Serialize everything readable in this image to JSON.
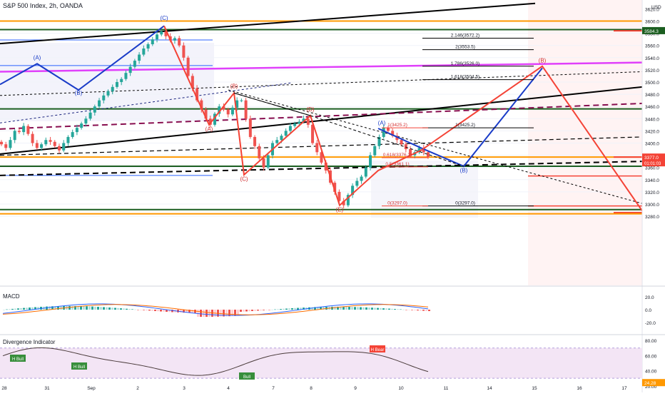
{
  "header": {
    "title": "S&P 500 Index, 2h, OANDA"
  },
  "chart_data": [
    {
      "type": "candlestick",
      "title": "S&P 500 Index, 2h, OANDA",
      "currency_label": "USD",
      "ylim": [
        3278,
        3620
      ],
      "y_ticks": [
        "3620.0",
        "3600.0",
        "3580.0",
        "3560.0",
        "3540.0",
        "3520.0",
        "3500.0",
        "3480.0",
        "3460.0",
        "3440.0",
        "3420.0",
        "3400.0",
        "3380.0",
        "3360.0",
        "3340.0",
        "3320.0",
        "3300.0",
        "3280.0"
      ],
      "x_tick_labels": [
        "28",
        "31",
        "Sep",
        "2",
        "3",
        "4",
        "7",
        "8",
        "9",
        "10",
        "11",
        "14",
        "15",
        "16",
        "17"
      ],
      "close_path": [
        3398,
        3392,
        3405,
        3420,
        3418,
        3428,
        3415,
        3400,
        3392,
        3398,
        3405,
        3402,
        3395,
        3388,
        3400,
        3410,
        3418,
        3425,
        3432,
        3440,
        3450,
        3460,
        3470,
        3478,
        3485,
        3492,
        3500,
        3505,
        3515,
        3525,
        3535,
        3545,
        3555,
        3562,
        3570,
        3578,
        3583,
        3575,
        3568,
        3572,
        3560,
        3540,
        3510,
        3490,
        3470,
        3455,
        3440,
        3430,
        3448,
        3460,
        3455,
        3447,
        3458,
        3470,
        3470,
        3440,
        3410,
        3395,
        3375,
        3360,
        3380,
        3400,
        3405,
        3412,
        3420,
        3428,
        3432,
        3435,
        3440,
        3430,
        3400,
        3385,
        3368,
        3355,
        3335,
        3320,
        3305,
        3298,
        3315,
        3330,
        3338,
        3345,
        3360,
        3380,
        3395,
        3410,
        3425,
        3420,
        3412,
        3405,
        3398,
        3390,
        3380,
        3385,
        3392,
        3385,
        3377
      ],
      "last_price": "3377.0",
      "price_label_top": "3584.3",
      "countdown": "01:01:03",
      "wave_labels": [
        "(A)",
        "(B)",
        "(C)",
        "(A)",
        "(B)",
        "(C)",
        "(D)",
        "(E)",
        "(A)",
        "(B)",
        "(B)"
      ],
      "fib_labels": [
        "2.146(3572.2)",
        "2(3553.5)",
        "1.786(3526.0)",
        "1.618(3504.5)",
        "1(3425.2)",
        "0(3297.0)",
        "1(3425.2)",
        "0.618(3376.2)",
        "0.5(3361.1)",
        "0(3297.0)"
      ]
    },
    {
      "type": "histogram",
      "title": "MACD",
      "y_ticks": [
        "20.0",
        "0.0",
        "-20.0"
      ],
      "ylim": [
        -30,
        30
      ]
    },
    {
      "type": "line",
      "title": "Divergence Indicator",
      "y_ticks": [
        "80.00",
        "60.00",
        "40.00",
        "20.00"
      ],
      "ylim": [
        16,
        84
      ],
      "last_value": "24.28",
      "signal_labels": [
        "H Bull",
        "H Bull",
        "Bull",
        "H Bear"
      ]
    }
  ]
}
